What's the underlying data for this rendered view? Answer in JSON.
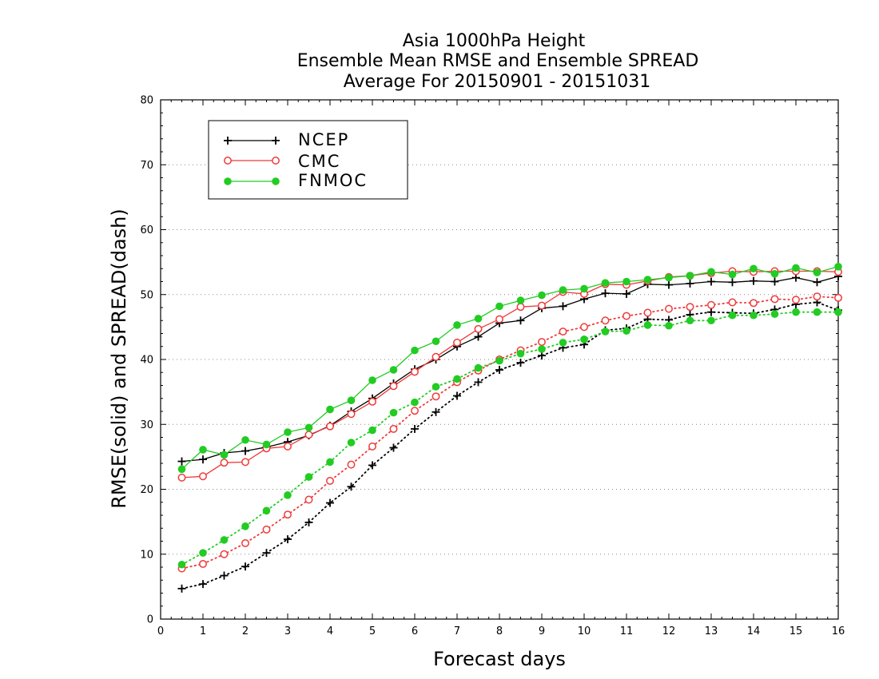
{
  "chart_data": {
    "type": "line",
    "title_lines": [
      "Asia 1000hPa Height",
      "Ensemble Mean RMSE and Ensemble SPREAD",
      "Average For 20150901 - 20151031"
    ],
    "xlabel": "Forecast days",
    "ylabel": "RMSE(solid) and SPREAD(dash)",
    "xlim": [
      0,
      16
    ],
    "ylim": [
      0,
      80
    ],
    "xticks": [
      "0",
      "1",
      "2",
      "3",
      "4",
      "5",
      "6",
      "7",
      "8",
      "9",
      "10",
      "11",
      "12",
      "13",
      "14",
      "15",
      "16"
    ],
    "yticks": [
      "0",
      "10",
      "20",
      "30",
      "40",
      "50",
      "60",
      "70",
      "80"
    ],
    "grid": "horizontal dotted",
    "legend": {
      "placement": "top-left",
      "entries": [
        "NCEP",
        "CMC",
        "FNMOC"
      ]
    },
    "x": [
      0.5,
      1,
      1.5,
      2,
      2.5,
      3,
      3.5,
      4,
      4.5,
      5,
      5.5,
      6,
      6.5,
      7,
      7.5,
      8,
      8.5,
      9,
      9.5,
      10,
      10.5,
      11,
      11.5,
      12,
      12.5,
      13,
      13.5,
      14,
      14.5,
      15,
      15.5,
      16
    ],
    "series": [
      {
        "name": "NCEP",
        "color": "#000000",
        "marker": "plus",
        "line": "solid",
        "metric": "RMSE",
        "values": [
          24.3,
          24.6,
          25.6,
          25.9,
          26.5,
          27.3,
          28.3,
          29.8,
          32.0,
          34.0,
          36.3,
          38.5,
          40.0,
          42.0,
          43.5,
          45.6,
          46.0,
          47.9,
          48.2,
          49.3,
          50.2,
          50.1,
          51.6,
          51.5,
          51.7,
          52.0,
          51.9,
          52.1,
          52.0,
          52.6,
          51.9,
          52.8
        ]
      },
      {
        "name": "CMC",
        "color": "#ef3a3a",
        "marker": "circle",
        "line": "solid",
        "metric": "RMSE",
        "values": [
          21.8,
          22.0,
          24.1,
          24.2,
          26.3,
          26.6,
          28.4,
          29.7,
          31.6,
          33.5,
          35.9,
          38.1,
          40.4,
          42.6,
          44.7,
          46.2,
          48.1,
          48.3,
          50.4,
          50.1,
          51.6,
          51.5,
          52.1,
          52.7,
          52.9,
          53.3,
          53.6,
          53.5,
          53.6,
          53.6,
          53.6,
          53.5
        ]
      },
      {
        "name": "FNMOC",
        "color": "#22cc22",
        "marker": "dot",
        "line": "solid",
        "metric": "RMSE",
        "values": [
          23.1,
          26.1,
          25.3,
          27.6,
          26.9,
          28.8,
          29.5,
          32.3,
          33.7,
          36.8,
          38.4,
          41.4,
          42.8,
          45.3,
          46.3,
          48.2,
          49.1,
          49.9,
          50.7,
          50.9,
          51.8,
          52.0,
          52.3,
          52.6,
          52.9,
          53.5,
          53.1,
          54.0,
          53.2,
          54.1,
          53.4,
          54.3
        ]
      },
      {
        "name": "NCEP",
        "color": "#000000",
        "marker": "plus",
        "line": "dash",
        "metric": "SPREAD",
        "values": [
          4.7,
          5.4,
          6.7,
          8.1,
          10.2,
          12.3,
          14.9,
          17.9,
          20.4,
          23.7,
          26.4,
          29.3,
          31.9,
          34.4,
          36.5,
          38.4,
          39.5,
          40.6,
          41.8,
          42.3,
          44.5,
          44.8,
          46.2,
          46.1,
          46.9,
          47.3,
          47.2,
          47.1,
          47.7,
          48.5,
          48.8,
          47.6
        ]
      },
      {
        "name": "CMC",
        "color": "#ef3a3a",
        "marker": "circle",
        "line": "dash",
        "metric": "SPREAD",
        "values": [
          7.8,
          8.5,
          10.0,
          11.7,
          13.8,
          16.1,
          18.4,
          21.3,
          23.8,
          26.6,
          29.3,
          32.1,
          34.3,
          36.5,
          38.3,
          40.0,
          41.4,
          42.7,
          44.3,
          45.0,
          46.0,
          46.7,
          47.2,
          47.8,
          48.1,
          48.4,
          48.8,
          48.7,
          49.3,
          49.2,
          49.7,
          49.5
        ]
      },
      {
        "name": "FNMOC",
        "color": "#22cc22",
        "marker": "dot",
        "line": "dash",
        "metric": "SPREAD",
        "values": [
          8.4,
          10.2,
          12.2,
          14.3,
          16.7,
          19.1,
          21.9,
          24.2,
          27.2,
          29.1,
          31.8,
          33.4,
          35.8,
          37.0,
          38.7,
          39.8,
          40.9,
          41.6,
          42.6,
          43.1,
          44.3,
          44.4,
          45.3,
          45.2,
          46.0,
          46.0,
          46.8,
          46.8,
          47.0,
          47.3,
          47.3,
          47.3
        ]
      }
    ]
  }
}
